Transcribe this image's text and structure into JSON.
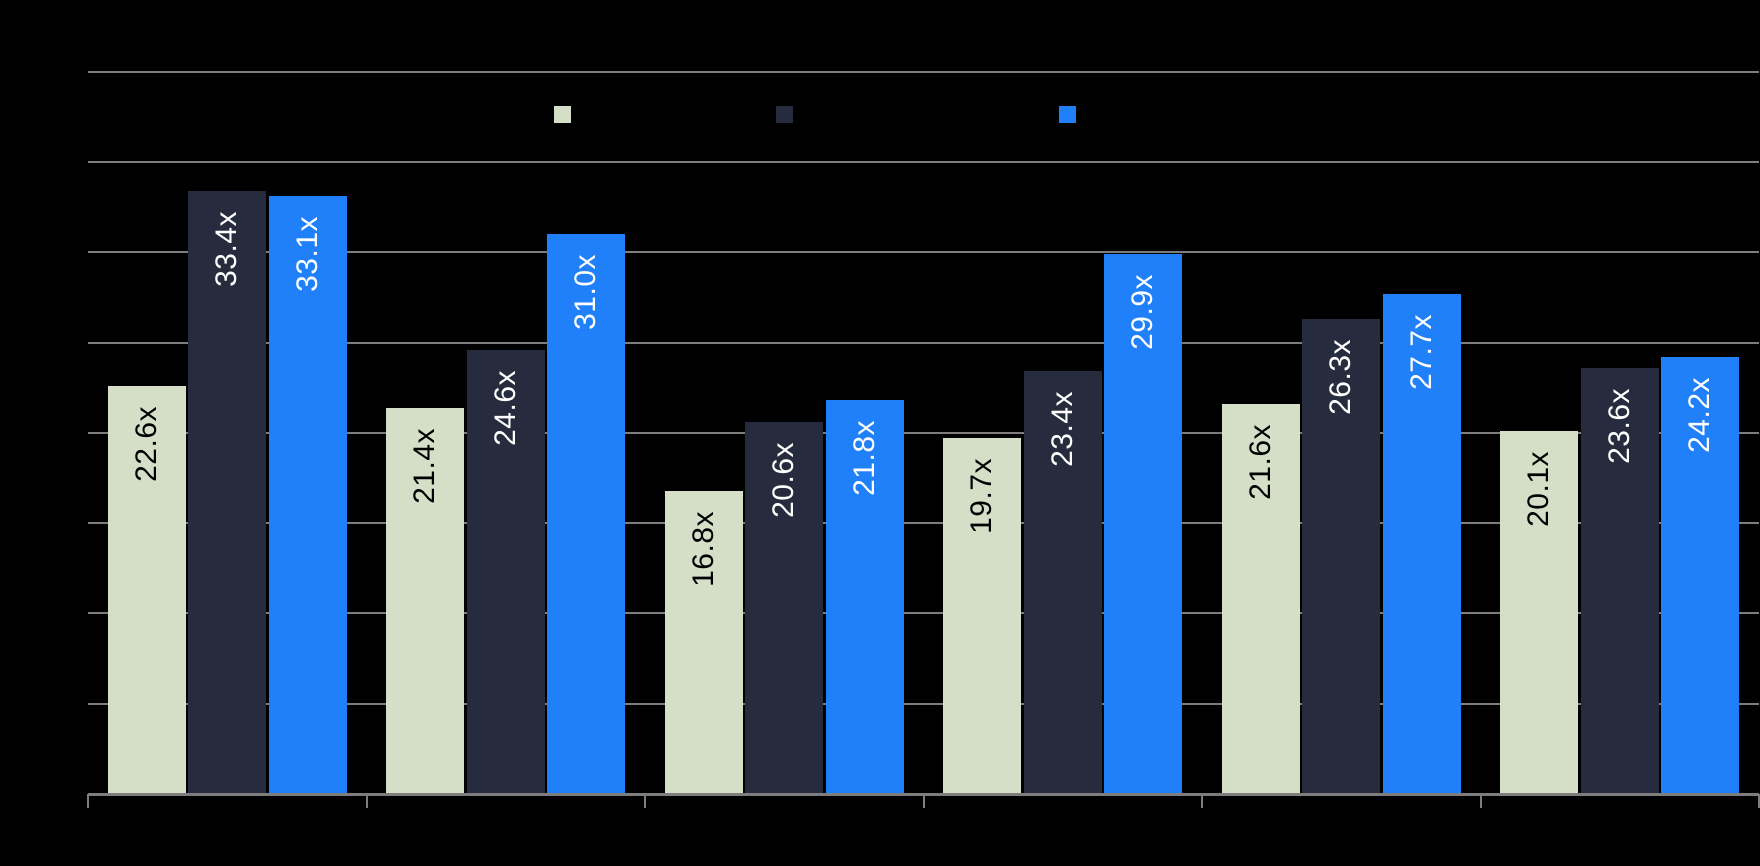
{
  "chart": {
    "background": "#000000",
    "legend": {
      "position": "top",
      "items": [
        {
          "label": "",
          "color": "#d5dfc8"
        },
        {
          "label": "",
          "color": "#262c3d"
        },
        {
          "label": "",
          "color": "#1f80fa"
        }
      ]
    }
  },
  "chart_data": {
    "type": "bar",
    "title": "",
    "xlabel": "",
    "ylabel": "",
    "categories": [
      "",
      "",
      "",
      "",
      "",
      ""
    ],
    "series": [
      {
        "name": "",
        "color": "#d5dfc8",
        "label_color": "#000000",
        "values": [
          22.6,
          21.4,
          16.8,
          19.7,
          21.6,
          20.1
        ],
        "labels": [
          "22.6x",
          "21.4x",
          "16.8x",
          "19.7x",
          "21.6x",
          "20.1x"
        ]
      },
      {
        "name": "",
        "color": "#262c3d",
        "label_color": "#ffffff",
        "values": [
          33.4,
          24.6,
          20.6,
          23.4,
          26.3,
          23.6
        ],
        "labels": [
          "33.4x",
          "24.6x",
          "20.6x",
          "23.4x",
          "26.3x",
          "23.6x"
        ]
      },
      {
        "name": "",
        "color": "#1f80fa",
        "label_color": "#ffffff",
        "values": [
          33.1,
          31.0,
          21.8,
          29.9,
          27.7,
          24.2
        ],
        "labels": [
          "33.1x",
          "31.0x",
          "21.8x",
          "29.9x",
          "27.7x",
          "24.2x"
        ]
      }
    ],
    "value_suffix": "x",
    "ylim": [
      0,
      40
    ],
    "ytick_step": 5,
    "gridlines": [
      5,
      10,
      15,
      20,
      25,
      30,
      35,
      40
    ],
    "grid_on": true,
    "legend_position": "top",
    "axis_color": "#7d7d7d",
    "gridline_color": "#7d7d7d"
  }
}
